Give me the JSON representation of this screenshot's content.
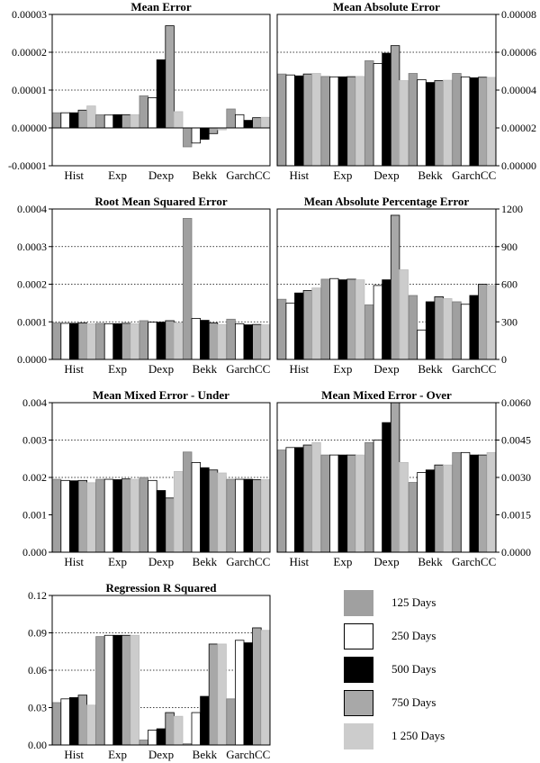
{
  "series_styles": [
    {
      "name": "125 Days",
      "fill": "#a0a0a0",
      "stroke": "#7a7a7a"
    },
    {
      "name": "250 Days",
      "fill": "#ffffff",
      "stroke": "#000000"
    },
    {
      "name": "500 Days",
      "fill": "#000000",
      "stroke": "#000000"
    },
    {
      "name": "750 Days",
      "fill": "#a8a8a8",
      "stroke": "#000000"
    },
    {
      "name": "1 250 Days",
      "fill": "#cccccc",
      "stroke": "#bdbdbd"
    }
  ],
  "legend": {
    "items": [
      "125 Days",
      "250 Days",
      "500 Days",
      "750 Days",
      "1 250 Days"
    ]
  },
  "chart_data": [
    {
      "type": "bar",
      "title": "Mean Error",
      "axis_side": "left",
      "categories": [
        "Hist",
        "Exp",
        "Dexp",
        "Bekk",
        "GarchCC"
      ],
      "ylim": [
        -1e-05,
        3e-05
      ],
      "yticks": [
        -1e-05,
        0,
        1e-05,
        2e-05,
        3e-05
      ],
      "ytick_labels": [
        "-0.00001",
        "0.00000",
        "0.00001",
        "0.00002",
        "0.00003"
      ],
      "series": [
        {
          "name": "125 Days",
          "values": [
            4e-06,
            3.5e-06,
            8.5e-06,
            -5e-06,
            5e-06
          ]
        },
        {
          "name": "250 Days",
          "values": [
            4e-06,
            3.4e-06,
            8e-06,
            -4e-06,
            3.5e-06
          ]
        },
        {
          "name": "500 Days",
          "values": [
            4e-06,
            3.5e-06,
            1.8e-05,
            -3e-06,
            2e-06
          ]
        },
        {
          "name": "750 Days",
          "values": [
            4.7e-06,
            3.5e-06,
            2.7e-05,
            -1.5e-06,
            2.7e-06
          ]
        },
        {
          "name": "1 250 Days",
          "values": [
            5.8e-06,
            3.5e-06,
            4.3e-06,
            -5e-07,
            2.8e-06
          ]
        }
      ]
    },
    {
      "type": "bar",
      "title": "Mean Absolute Error",
      "axis_side": "right",
      "categories": [
        "Hist",
        "Exp",
        "Dexp",
        "Bekk",
        "GarchCC"
      ],
      "ylim": [
        0,
        8e-05
      ],
      "yticks": [
        0,
        2e-05,
        4e-05,
        6e-05,
        8e-05
      ],
      "ytick_labels": [
        "0.00000",
        "0.00002",
        "0.00004",
        "0.00006",
        "0.00008"
      ],
      "series": [
        {
          "name": "125 Days",
          "values": [
            4.85e-05,
            4.72e-05,
            5.55e-05,
            4.88e-05,
            4.88e-05
          ]
        },
        {
          "name": "250 Days",
          "values": [
            4.8e-05,
            4.7e-05,
            5.4e-05,
            4.55e-05,
            4.7e-05
          ]
        },
        {
          "name": "500 Days",
          "values": [
            4.75e-05,
            4.7e-05,
            5.95e-05,
            4.4e-05,
            4.65e-05
          ]
        },
        {
          "name": "750 Days",
          "values": [
            4.85e-05,
            4.71e-05,
            6.35e-05,
            4.5e-05,
            4.68e-05
          ]
        },
        {
          "name": "1 250 Days",
          "values": [
            4.88e-05,
            4.72e-05,
            4.5e-05,
            4.52e-05,
            4.67e-05
          ]
        }
      ]
    },
    {
      "type": "bar",
      "title": "Root Mean Squared Error",
      "axis_side": "left",
      "categories": [
        "Hist",
        "Exp",
        "Dexp",
        "Bekk",
        "GarchCC"
      ],
      "ylim": [
        0,
        0.0004
      ],
      "yticks": [
        0,
        0.0001,
        0.0002,
        0.0003,
        0.0004
      ],
      "ytick_labels": [
        "0.0000",
        "0.0001",
        "0.0002",
        "0.0003",
        "0.0004"
      ],
      "series": [
        {
          "name": "125 Days",
          "values": [
            9.7e-05,
            9.6e-05,
            0.000103,
            0.000375,
            0.000107
          ]
        },
        {
          "name": "250 Days",
          "values": [
            9.6e-05,
            9.5e-05,
            9.9e-05,
            0.000109,
            9.5e-05
          ]
        },
        {
          "name": "500 Days",
          "values": [
            9.6e-05,
            9.5e-05,
            9.9e-05,
            0.000104,
            9.2e-05
          ]
        },
        {
          "name": "750 Days",
          "values": [
            9.7e-05,
            9.6e-05,
            0.000103,
            9.7e-05,
            9.3e-05
          ]
        },
        {
          "name": "1 250 Days",
          "values": [
            9.5e-05,
            9.5e-05,
            9.7e-05,
            9.3e-05,
            9.2e-05
          ]
        }
      ]
    },
    {
      "type": "bar",
      "title": "Mean Absolute Percentage Error",
      "axis_side": "right",
      "categories": [
        "Hist",
        "Exp",
        "Dexp",
        "Bekk",
        "GarchCC"
      ],
      "ylim": [
        0,
        1200
      ],
      "yticks": [
        0,
        300,
        600,
        900,
        1200
      ],
      "ytick_labels": [
        "0",
        "300",
        "600",
        "900",
        "1200"
      ],
      "series": [
        {
          "name": "125 Days",
          "values": [
            480,
            640,
            435,
            510,
            460
          ]
        },
        {
          "name": "250 Days",
          "values": [
            450,
            645,
            590,
            235,
            440
          ]
        },
        {
          "name": "500 Days",
          "values": [
            530,
            635,
            635,
            460,
            510
          ]
        },
        {
          "name": "750 Days",
          "values": [
            550,
            640,
            1150,
            500,
            600
          ]
        },
        {
          "name": "1 250 Days",
          "values": [
            570,
            635,
            715,
            485,
            590
          ]
        }
      ]
    },
    {
      "type": "bar",
      "title": "Mean Mixed Error - Under",
      "axis_side": "left",
      "categories": [
        "Hist",
        "Exp",
        "Dexp",
        "Bekk",
        "GarchCC"
      ],
      "ylim": [
        0,
        0.004
      ],
      "yticks": [
        0,
        0.001,
        0.002,
        0.003,
        0.004
      ],
      "ytick_labels": [
        "0.000",
        "0.001",
        "0.002",
        "0.003",
        "0.004"
      ],
      "series": [
        {
          "name": "125 Days",
          "values": [
            0.00195,
            0.00195,
            0.002,
            0.00268,
            0.00195
          ]
        },
        {
          "name": "250 Days",
          "values": [
            0.00192,
            0.00195,
            0.00192,
            0.0024,
            0.00195
          ]
        },
        {
          "name": "500 Days",
          "values": [
            0.00191,
            0.00194,
            0.00165,
            0.00226,
            0.00195
          ]
        },
        {
          "name": "750 Days",
          "values": [
            0.00192,
            0.00196,
            0.00145,
            0.0022,
            0.00194
          ]
        },
        {
          "name": "1 250 Days",
          "values": [
            0.00186,
            0.00195,
            0.00216,
            0.00212,
            0.00194
          ]
        }
      ]
    },
    {
      "type": "bar",
      "title": "Mean Mixed Error - Over",
      "axis_side": "right",
      "categories": [
        "Hist",
        "Exp",
        "Dexp",
        "Bekk",
        "GarchCC"
      ],
      "ylim": [
        0,
        0.006
      ],
      "yticks": [
        0,
        0.0015,
        0.003,
        0.0045,
        0.006
      ],
      "ytick_labels": [
        "0.0000",
        "0.0015",
        "0.0030",
        "0.0045",
        "0.0060"
      ],
      "series": [
        {
          "name": "125 Days",
          "values": [
            0.0041,
            0.0039,
            0.0044,
            0.0028,
            0.004
          ]
        },
        {
          "name": "250 Days",
          "values": [
            0.0042,
            0.0039,
            0.0045,
            0.0032,
            0.004
          ]
        },
        {
          "name": "500 Days",
          "values": [
            0.0042,
            0.0039,
            0.0052,
            0.0033,
            0.0039
          ]
        },
        {
          "name": "750 Days",
          "values": [
            0.0043,
            0.0039,
            0.006,
            0.0035,
            0.0039
          ]
        },
        {
          "name": "1 250 Days",
          "values": [
            0.0044,
            0.0039,
            0.0036,
            0.0035,
            0.004
          ]
        }
      ]
    },
    {
      "type": "bar",
      "title": "Regression R Squared",
      "axis_side": "left",
      "categories": [
        "Hist",
        "Exp",
        "Dexp",
        "Bekk",
        "GarchCC"
      ],
      "ylim": [
        0,
        0.12
      ],
      "yticks": [
        0,
        0.03,
        0.06,
        0.09,
        0.12
      ],
      "ytick_labels": [
        "0.00",
        "0.03",
        "0.06",
        "0.09",
        "0.12"
      ],
      "series": [
        {
          "name": "125 Days",
          "values": [
            0.034,
            0.087,
            0.004,
            0.001,
            0.037
          ]
        },
        {
          "name": "250 Days",
          "values": [
            0.037,
            0.088,
            0.012,
            0.026,
            0.084
          ]
        },
        {
          "name": "500 Days",
          "values": [
            0.038,
            0.088,
            0.013,
            0.039,
            0.082
          ]
        },
        {
          "name": "750 Days",
          "values": [
            0.04,
            0.088,
            0.026,
            0.081,
            0.094
          ]
        },
        {
          "name": "1 250 Days",
          "values": [
            0.032,
            0.088,
            0.023,
            0.081,
            0.092
          ]
        }
      ]
    }
  ]
}
